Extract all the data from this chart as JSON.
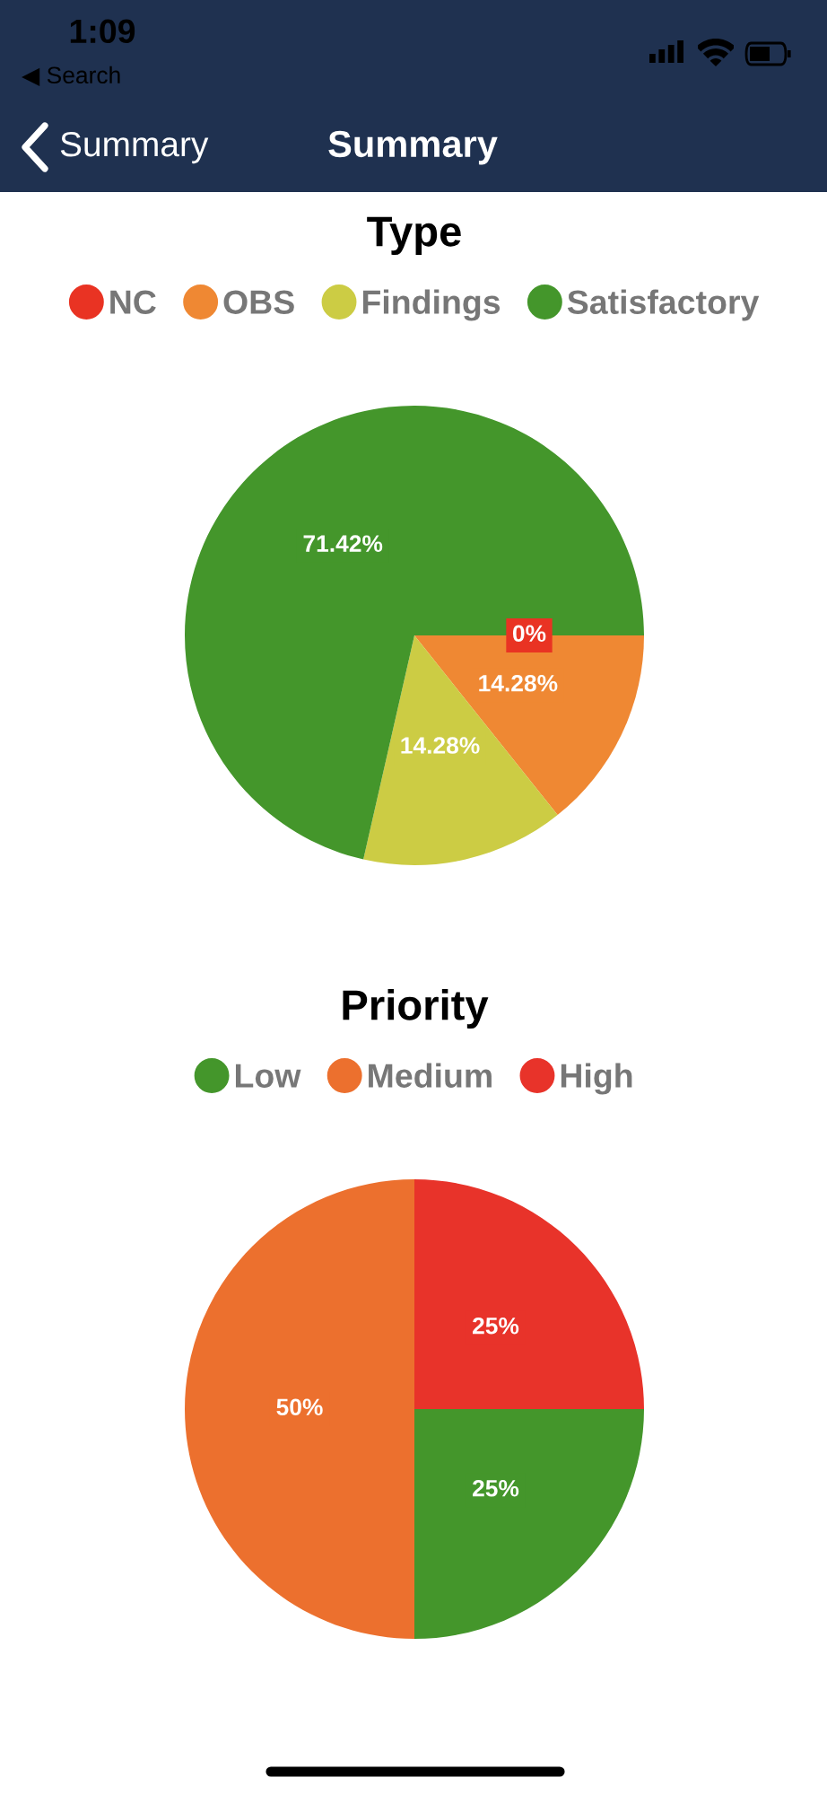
{
  "chart_data": [
    {
      "type": "pie",
      "title": "Type",
      "categories": [
        "NC",
        "OBS",
        "Findings",
        "Satisfactory"
      ],
      "values": [
        0,
        14.28,
        14.28,
        71.42
      ],
      "colors": [
        "#e93323",
        "#ef8833",
        "#cccc44",
        "#44962b"
      ],
      "value_labels": [
        "0%",
        "14.28%",
        "14.28%",
        "71.42%"
      ],
      "legend": "top",
      "annotations": [
        "1:09",
        "◀ Search",
        "Summary",
        "Summary"
      ]
    },
    {
      "type": "pie",
      "title": "Priority",
      "categories": [
        "Low",
        "Medium",
        "High"
      ],
      "values": [
        25,
        50,
        25
      ],
      "colors": [
        "#44962b",
        "#ec702e",
        "#e8332a"
      ],
      "value_labels": [
        "25%",
        "50%",
        "25%"
      ],
      "legend": "top"
    }
  ]
}
